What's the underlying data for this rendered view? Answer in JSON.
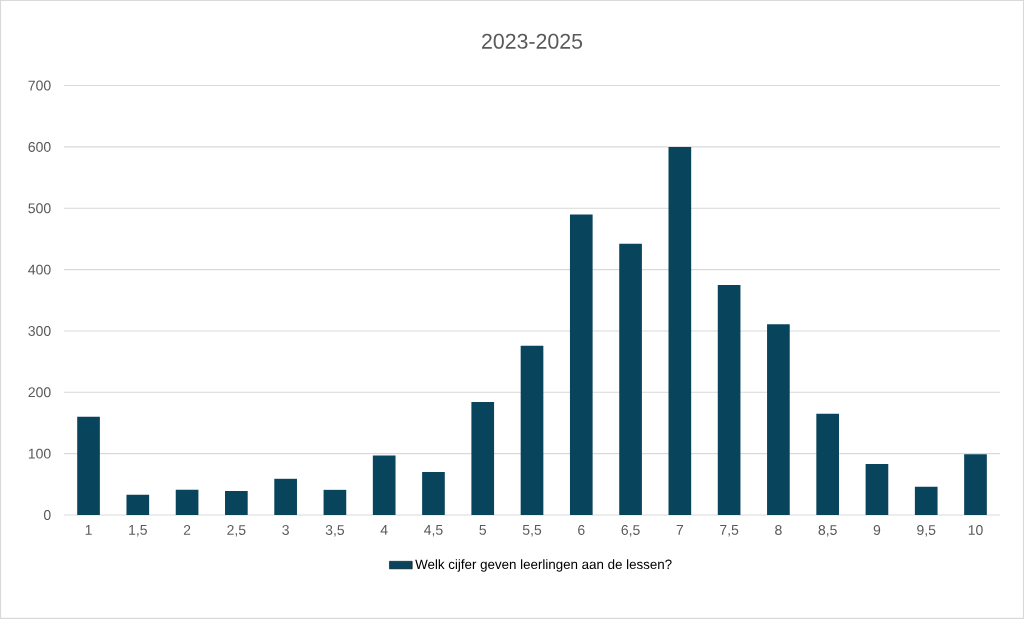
{
  "chart_data": {
    "type": "bar",
    "title": "2023-2025",
    "categories": [
      "1",
      "1,5",
      "2",
      "2,5",
      "3",
      "3,5",
      "4",
      "4,5",
      "5",
      "5,5",
      "6",
      "6,5",
      "7",
      "7,5",
      "8",
      "8,5",
      "9",
      "9,5",
      "10"
    ],
    "series": [
      {
        "name": "Welk cijfer geven leerlingen aan de lessen?",
        "color": "#08445c",
        "values": [
          160,
          33,
          41,
          39,
          59,
          41,
          97,
          70,
          184,
          276,
          490,
          442,
          600,
          375,
          311,
          165,
          83,
          46,
          99
        ]
      }
    ],
    "ylim": [
      0,
      700
    ],
    "yticks": [
      0,
      100,
      200,
      300,
      400,
      500,
      600,
      700
    ],
    "grid": "y",
    "legend": "bottom"
  }
}
